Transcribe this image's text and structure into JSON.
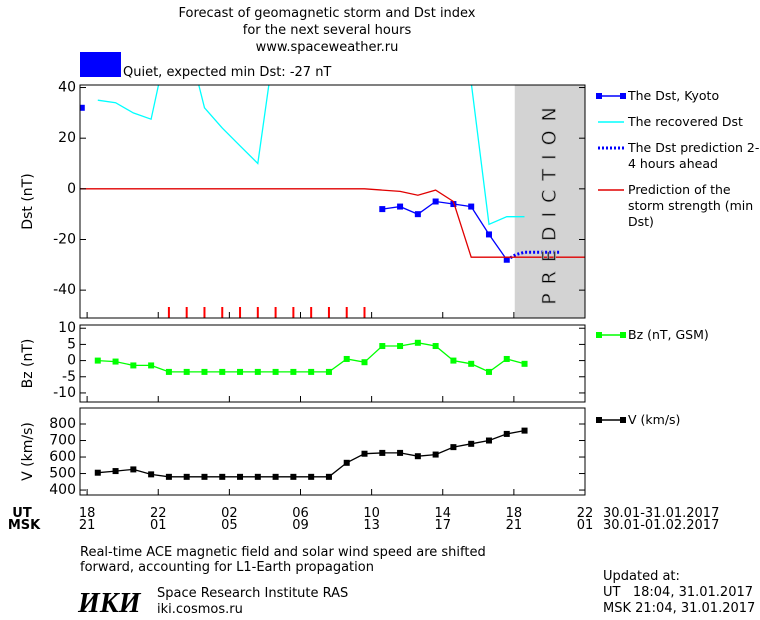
{
  "header": {
    "title_lines": [
      "Forecast of geomagnetic storm and Dst index",
      "for the next several hours",
      "www.spaceweather.ru"
    ]
  },
  "status": {
    "text": "Quiet, expected min Dst: -27 nT",
    "color": "#0000ff"
  },
  "chart_data": [
    {
      "type": "line",
      "ylabel": "Dst (nT)",
      "xlim": [
        17.6,
        46
      ],
      "ylim": [
        -51,
        41
      ],
      "yticks": [
        -40,
        -20,
        0,
        20,
        40
      ],
      "series": [
        {
          "name": "The Dst, Kyoto",
          "color": "#0000ff",
          "marker": "square",
          "x": [
            17.7,
            26.5,
            34.6,
            35.6,
            36.6,
            37.6,
            38.6,
            39.6,
            40.6,
            41.6
          ],
          "values": [
            32,
            null,
            -8,
            -7,
            -10,
            -5,
            -6,
            -7,
            -18,
            -28
          ]
        },
        {
          "name": "The recovered Dst",
          "color": "#00ffff",
          "x": [
            18.6,
            19.6,
            20.6,
            21.6,
            22.6,
            23.6,
            24.6,
            25.6,
            26.6,
            27.6,
            28.6,
            39.6,
            40.6,
            41.6,
            42.6
          ],
          "values": [
            35,
            34,
            30,
            27.5,
            60,
            60,
            32,
            24,
            17,
            10,
            60,
            42,
            -14,
            -11,
            -11
          ]
        },
        {
          "name": "The Dst prediction 2-4 hours ahead",
          "color": "#0000ff",
          "style": "dotted",
          "x": [
            41.6,
            42.1,
            42.6,
            44.6
          ],
          "values": [
            -28,
            -26,
            -25,
            -25
          ]
        },
        {
          "name": "Prediction of the storm strength (min Dst)",
          "color": "#e00000",
          "x": [
            17.6,
            33.6,
            34.6,
            35.6,
            36.6,
            37.6,
            38.6,
            39.6,
            46
          ],
          "values": [
            0,
            0,
            -0.5,
            -1,
            -2.5,
            -0.5,
            -5,
            -27,
            -27
          ]
        }
      ],
      "event_marks": {
        "color": "#ff0000",
        "x": [
          22.6,
          23.6,
          24.6,
          25.6,
          26.6,
          27.6,
          28.6,
          29.6,
          30.6,
          31.6,
          32.6,
          33.6
        ]
      },
      "prediction_band": {
        "xlim": [
          42.05,
          46
        ],
        "label": "PREDICTION",
        "color": "#d3d3d3"
      }
    },
    {
      "type": "line",
      "ylabel": "Bz (nT)",
      "xlim": [
        17.6,
        46
      ],
      "ylim": [
        -12.8,
        11
      ],
      "yticks": [
        -10,
        -5,
        0,
        5,
        10
      ],
      "series": [
        {
          "name": "Bz (nT, GSM)",
          "color": "#00ff00",
          "marker": "square",
          "x": [
            18.6,
            19.6,
            20.6,
            21.6,
            22.6,
            23.6,
            24.6,
            25.6,
            26.6,
            27.6,
            28.6,
            29.6,
            30.6,
            31.6,
            32.6,
            33.6,
            34.6,
            35.6,
            36.6,
            37.6,
            38.6,
            39.6,
            40.6,
            41.6,
            42.6
          ],
          "values": [
            0,
            -0.3,
            -1.5,
            -1.5,
            -3.5,
            -3.5,
            -3.5,
            -3.5,
            -3.5,
            -3.5,
            -3.5,
            -3.5,
            -3.5,
            -3.5,
            0.5,
            -0.5,
            4.5,
            4.5,
            5.5,
            4.5,
            0,
            -1,
            -3.5,
            0.5,
            -1
          ]
        }
      ]
    },
    {
      "type": "line",
      "ylabel": "V (km/s)",
      "xlim": [
        17.6,
        46
      ],
      "ylim": [
        370,
        897
      ],
      "yticks": [
        400,
        500,
        600,
        700,
        800
      ],
      "xticks": [
        18,
        22,
        {
          "value": 26,
          "label": "02"
        },
        {
          "value": 30,
          "label": "06"
        },
        {
          "value": 34,
          "label": "10"
        },
        {
          "value": 38,
          "label": "14"
        },
        {
          "value": 42,
          "label": "18"
        },
        {
          "value": 46,
          "label": "22"
        }
      ],
      "series": [
        {
          "name": "V (km/s)",
          "color": "#000000",
          "marker": "square",
          "x": [
            18.6,
            19.6,
            20.6,
            21.6,
            22.6,
            23.6,
            24.6,
            25.6,
            26.6,
            27.6,
            28.6,
            29.6,
            30.6,
            31.6,
            32.6,
            33.6,
            34.6,
            35.6,
            36.6,
            37.6,
            38.6,
            39.6,
            40.6,
            41.6,
            42.6
          ],
          "values": [
            505,
            515,
            525,
            495,
            480,
            480,
            480,
            480,
            480,
            480,
            480,
            480,
            480,
            480,
            565,
            620,
            625,
            625,
            605,
            615,
            660,
            680,
            700,
            740,
            760
          ]
        }
      ]
    }
  ],
  "time_axis": {
    "rows": [
      "UT",
      "MSK"
    ],
    "msk_tick_labels": [
      "21",
      "01",
      "05",
      "09",
      "13",
      "17",
      "21",
      "01"
    ],
    "date_ranges": [
      "30.01-31.01.2017",
      "30.01-01.02.2017"
    ]
  },
  "footer": {
    "note_lines": [
      "Real-time ACE magnetic field and solar wind speed are shifted",
      "forward, accounting for L1-Earth propagation"
    ],
    "logo": "ИКИ",
    "institute": "Space Research Institute RAS",
    "url": "iki.cosmos.ru",
    "updated_title": "Updated at:",
    "updated_lines": [
      "UT   18:04, 31.01.2017",
      "MSK 21:04, 31.01.2017"
    ]
  }
}
